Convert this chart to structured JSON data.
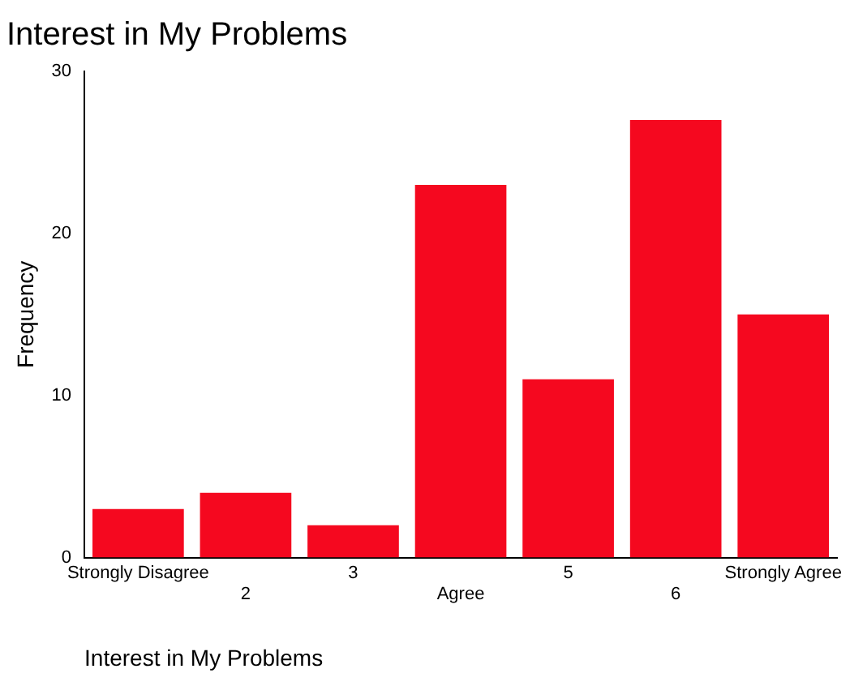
{
  "chart_data": {
    "type": "bar",
    "title": "Interest in My Problems",
    "xlabel": "Interest in My Problems",
    "ylabel": "Frequency",
    "categories": [
      "Strongly Disagree",
      "2",
      "3",
      "Agree",
      "5",
      "6",
      "Strongly Agree"
    ],
    "values": [
      3,
      4,
      2,
      23,
      11,
      27,
      15
    ],
    "color": "#f5081f",
    "ylim": [
      0,
      30
    ],
    "yticks": [
      0,
      10,
      20,
      30
    ],
    "grid": false,
    "legend": false
  }
}
